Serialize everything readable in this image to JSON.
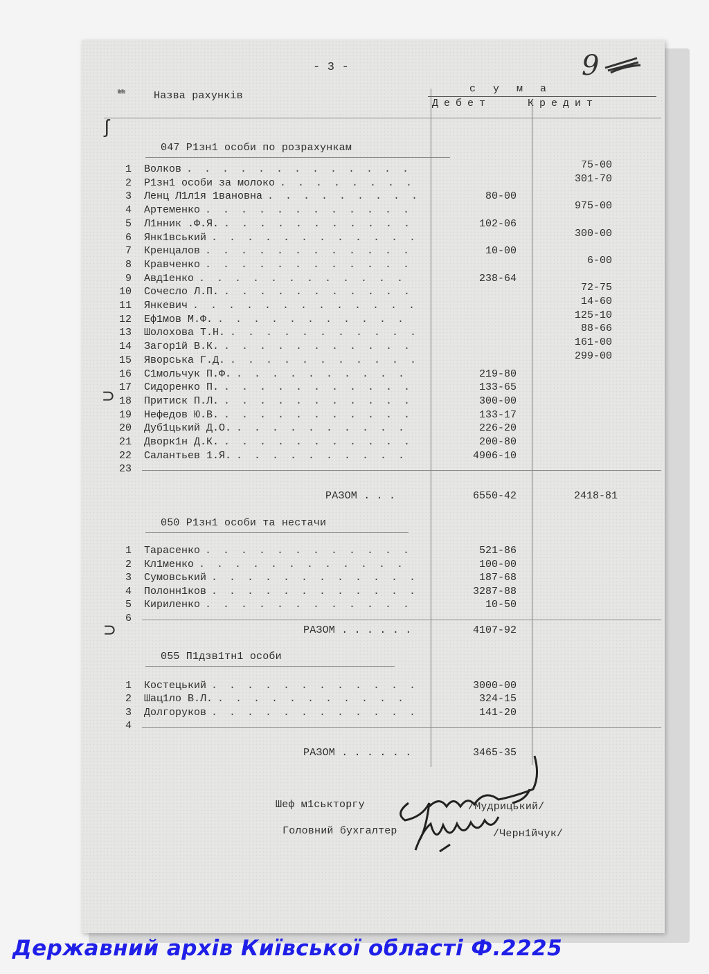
{
  "page": {
    "page_number_typed": "- 3 -",
    "page_number_handwritten": "9"
  },
  "header": {
    "number_col": "№№",
    "name_col": "Назва рахункiв",
    "sum_label": "с у м а",
    "debit_label": "Дебет",
    "credit_label": "Кредит"
  },
  "sections": [
    {
      "title": "047  Р1зн1 особи по розрахункам",
      "rows": [
        {
          "n": "1",
          "name": "Волков",
          "debit": "",
          "credit": "75-00"
        },
        {
          "n": "2",
          "name": "Р1зн1 особи за молоко",
          "debit": "",
          "credit": "301-70"
        },
        {
          "n": "3",
          "name": "Ленц Л1л1я 1ванoвна",
          "debit": "80-00",
          "credit": ""
        },
        {
          "n": "4",
          "name": "Артеменко",
          "debit": "",
          "credit": "975-00"
        },
        {
          "n": "5",
          "name": "Л1нник .Ф.Я.",
          "debit": "102-06",
          "credit": ""
        },
        {
          "n": "6",
          "name": "Янк1вський",
          "debit": "",
          "credit": "300-00"
        },
        {
          "n": "7",
          "name": "Кренцалов",
          "debit": "10-00",
          "credit": ""
        },
        {
          "n": "8",
          "name": "Кравченко",
          "debit": "",
          "credit": "6-00"
        },
        {
          "n": "9",
          "name": "Авд1енко",
          "debit": "238-64",
          "credit": ""
        },
        {
          "n": "10",
          "name": "Сочесло Л.П.",
          "debit": "",
          "credit": "72-75"
        },
        {
          "n": "11",
          "name": "Янкевич",
          "debit": "",
          "credit": "14-60"
        },
        {
          "n": "12",
          "name": "Еф1мов М.Ф.",
          "debit": "",
          "credit": "125-10"
        },
        {
          "n": "13",
          "name": "Шолохова Т.Н.",
          "debit": "",
          "credit": "88-66"
        },
        {
          "n": "14",
          "name": "Загор1й В.К.",
          "debit": "",
          "credit": "161-00"
        },
        {
          "n": "15",
          "name": "Яворська Г.Д.",
          "debit": "",
          "credit": "299-00"
        },
        {
          "n": "16",
          "name": "С1мольчук П.Ф.",
          "debit": "219-80",
          "credit": ""
        },
        {
          "n": "17",
          "name": "Сидоренко П.",
          "debit": "133-65",
          "credit": ""
        },
        {
          "n": "18",
          "name": "Притиск П.Л.",
          "debit": "300-00",
          "credit": ""
        },
        {
          "n": "19",
          "name": "Нефедов Ю.В.",
          "debit": "133-17",
          "credit": ""
        },
        {
          "n": "20",
          "name": "Дуб1цький Д.О.",
          "debit": "226-20",
          "credit": ""
        },
        {
          "n": "21",
          "name": "Дворк1н Д.К.",
          "debit": "200-80",
          "credit": ""
        },
        {
          "n": "22",
          "name": "Салантьев 1.Я.",
          "debit": "4906-10",
          "credit": ""
        },
        {
          "n": "23",
          "name": "",
          "debit": "",
          "credit": ""
        }
      ],
      "total_label": "РАЗОМ  . . .",
      "total_debit": "6550-42",
      "total_credit": "2418-81"
    },
    {
      "title": "050  Р1зн1 особи та нестачи",
      "rows": [
        {
          "n": "1",
          "name": "Тарасенко",
          "debit": "521-86",
          "credit": ""
        },
        {
          "n": "2",
          "name": "Кл1менко",
          "debit": "100-00",
          "credit": ""
        },
        {
          "n": "3",
          "name": "Сумовський",
          "debit": "187-68",
          "credit": ""
        },
        {
          "n": "4",
          "name": "Полонн1ков",
          "debit": "3287-88",
          "credit": ""
        },
        {
          "n": "5",
          "name": "Кириленко",
          "debit": "10-50",
          "credit": ""
        },
        {
          "n": "6",
          "name": "",
          "debit": "",
          "credit": ""
        }
      ],
      "total_label": "РАЗОМ . . . . . .",
      "total_debit": "4107-92",
      "total_credit": ""
    },
    {
      "title": "055  П1дзв1тн1 особи",
      "rows": [
        {
          "n": "1",
          "name": "Костецький",
          "debit": "3000-00",
          "credit": ""
        },
        {
          "n": "2",
          "name": "Шац1ло В.Л.",
          "debit": "324-15",
          "credit": ""
        },
        {
          "n": "3",
          "name": "Долгоруков",
          "debit": "141-20",
          "credit": ""
        },
        {
          "n": "4",
          "name": "",
          "debit": "",
          "credit": ""
        }
      ],
      "total_label": "РАЗОМ . . . . . .",
      "total_debit": "3465-35",
      "total_credit": ""
    }
  ],
  "signatures": [
    {
      "title": "Шеф м1ськторгу",
      "name": "/Мудрицький/"
    },
    {
      "title": "Головний бухгалтер",
      "name": "/Черн1йчук/"
    }
  ],
  "footer": {
    "archive_caption": "Державний архів Київської області Ф.2225",
    "caption_color": "#1f1fe8"
  }
}
